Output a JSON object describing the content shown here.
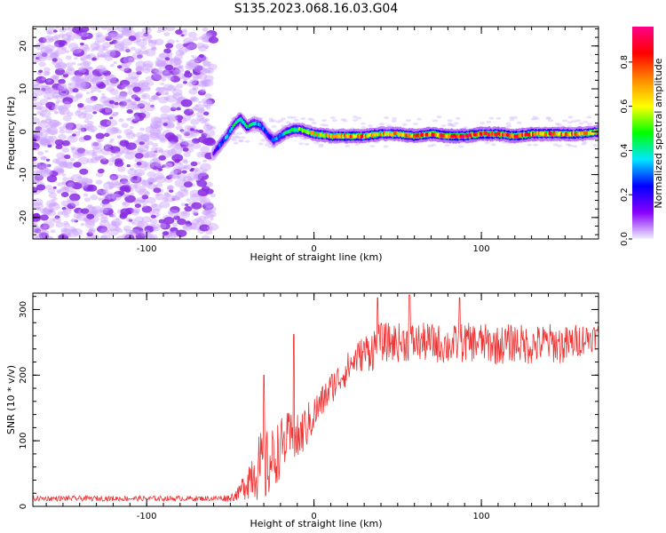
{
  "figure_title": "S135.2023.068.16.03.G04",
  "colors": {
    "snr_line": "#ee3333",
    "axis": "#000000"
  },
  "chart_data": [
    {
      "type": "heatmap",
      "title": "",
      "xlabel": "Height of straight line (km)",
      "ylabel": "Frequency (Hz)",
      "xlim": [
        -168,
        170
      ],
      "ylim": [
        -25,
        24.5
      ],
      "xticks": [
        -100,
        0,
        100
      ],
      "yticks": [
        -20,
        -10,
        0,
        10,
        20
      ],
      "colorbar": {
        "label": "Normalized spectral amplitude",
        "range": [
          0,
          0.96
        ],
        "ticks": [
          0.0,
          0.2,
          0.4,
          0.6,
          0.8
        ],
        "colormap": [
          "#f0f0ff",
          "#8800ff",
          "#0000ff",
          "#00e6ff",
          "#00ff00",
          "#ffff00",
          "#ff8800",
          "#ff0000",
          "#ff0088"
        ]
      },
      "noise_region": {
        "x_range": [
          -168,
          -60
        ],
        "y_range": [
          -25,
          24.5
        ],
        "typical_amplitude": 0.02
      },
      "signal_track": {
        "x": [
          -60,
          -56,
          -52,
          -48,
          -44,
          -40,
          -36,
          -32,
          -28,
          -24,
          -20,
          -16,
          -12,
          -8,
          -4,
          0,
          10,
          20,
          30,
          40,
          50,
          60,
          70,
          80,
          90,
          100,
          110,
          120,
          130,
          140,
          150,
          160,
          170
        ],
        "frequency": [
          -5,
          -3,
          -1,
          1.5,
          3,
          1,
          2,
          1.5,
          -0.5,
          -2,
          -1,
          0,
          0.5,
          0.5,
          0,
          -0.5,
          -1,
          -1,
          -1,
          -0.5,
          -0.5,
          -1,
          -0.5,
          -1,
          -1,
          -0.5,
          -0.5,
          -1,
          -0.5,
          -0.5,
          -0.5,
          -0.5,
          0
        ],
        "amplitude": [
          0.15,
          0.3,
          0.35,
          0.45,
          0.5,
          0.45,
          0.4,
          0.35,
          0.25,
          0.3,
          0.35,
          0.45,
          0.5,
          0.55,
          0.6,
          0.65,
          0.75,
          0.8,
          0.75,
          0.7,
          0.72,
          0.78,
          0.8,
          0.82,
          0.85,
          0.88,
          0.85,
          0.8,
          0.82,
          0.78,
          0.8,
          0.75,
          0.7
        ]
      }
    },
    {
      "type": "line",
      "title": "",
      "xlabel": "Height of straight line (km)",
      "ylabel": "SNR (10 * v/v)",
      "xlim": [
        -168,
        170
      ],
      "ylim": [
        0,
        325
      ],
      "xticks": [
        -100,
        0,
        100
      ],
      "yticks": [
        0,
        100,
        200,
        300
      ],
      "series": [
        {
          "x": [
            -168,
            -150,
            -130,
            -110,
            -90,
            -70,
            -60,
            -50,
            -45,
            -40,
            -35,
            -30,
            -25,
            -20,
            -15,
            -10,
            -5,
            0,
            5,
            10,
            15,
            20,
            25,
            30,
            35,
            40,
            50,
            60,
            70,
            80,
            90,
            100,
            110,
            120,
            130,
            140,
            150,
            160,
            170
          ],
          "y": [
            12,
            12,
            12,
            12,
            12,
            12,
            12,
            13,
            20,
            40,
            60,
            55,
            70,
            90,
            105,
            100,
            120,
            140,
            160,
            180,
            195,
            210,
            225,
            235,
            240,
            250,
            250,
            250,
            250,
            245,
            250,
            250,
            245,
            250,
            245,
            250,
            245,
            255,
            260
          ],
          "noise_amplitude": [
            4,
            4,
            4,
            4,
            4,
            4,
            4,
            6,
            10,
            30,
            50,
            60,
            50,
            45,
            40,
            40,
            35,
            30,
            25,
            25,
            25,
            25,
            25,
            28,
            35,
            30,
            30,
            30,
            30,
            30,
            30,
            30,
            30,
            30,
            30,
            30,
            30,
            25,
            20
          ],
          "spikes": [
            {
              "x": -30,
              "y": 200
            },
            {
              "x": -12,
              "y": 262
            },
            {
              "x": 38,
              "y": 318
            },
            {
              "x": 57,
              "y": 322
            },
            {
              "x": 87,
              "y": 318
            }
          ]
        }
      ]
    }
  ]
}
